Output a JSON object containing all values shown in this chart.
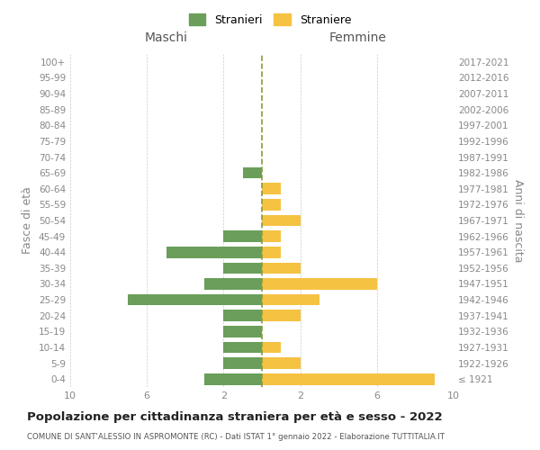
{
  "age_groups": [
    "100+",
    "95-99",
    "90-94",
    "85-89",
    "80-84",
    "75-79",
    "70-74",
    "65-69",
    "60-64",
    "55-59",
    "50-54",
    "45-49",
    "40-44",
    "35-39",
    "30-34",
    "25-29",
    "20-24",
    "15-19",
    "10-14",
    "5-9",
    "0-4"
  ],
  "birth_years": [
    "≤ 1921",
    "1922-1926",
    "1927-1931",
    "1932-1936",
    "1937-1941",
    "1942-1946",
    "1947-1951",
    "1952-1956",
    "1957-1961",
    "1962-1966",
    "1967-1971",
    "1972-1976",
    "1977-1981",
    "1982-1986",
    "1987-1991",
    "1992-1996",
    "1997-2001",
    "2002-2006",
    "2007-2011",
    "2012-2016",
    "2017-2021"
  ],
  "males": [
    0,
    0,
    0,
    0,
    0,
    0,
    0,
    1,
    0,
    0,
    0,
    2,
    5,
    2,
    3,
    7,
    2,
    2,
    2,
    2,
    3
  ],
  "females": [
    0,
    0,
    0,
    0,
    0,
    0,
    0,
    0,
    1,
    1,
    2,
    1,
    1,
    2,
    6,
    3,
    2,
    0,
    1,
    2,
    9
  ],
  "male_color": "#6a9e5a",
  "female_color": "#f5c242",
  "title": "Popolazione per cittadinanza straniera per età e sesso - 2022",
  "subtitle": "COMUNE DI SANT'ALESSIO IN ASPROMONTE (RC) - Dati ISTAT 1° gennaio 2022 - Elaborazione TUTTITALIA.IT",
  "xlabel_left": "Maschi",
  "xlabel_right": "Femmine",
  "ylabel_left": "Fasce di età",
  "ylabel_right": "Anni di nascita",
  "legend_male": "Stranieri",
  "legend_female": "Straniere",
  "xlim": 10,
  "background_color": "#ffffff",
  "grid_color": "#cccccc",
  "dashed_line_color": "#8a9a3a"
}
